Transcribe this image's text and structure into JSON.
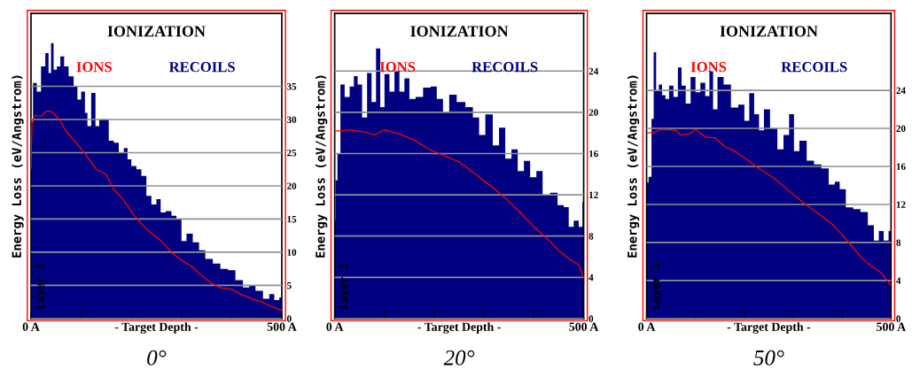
{
  "chart_data": [
    {
      "type": "area",
      "title": "IONIZATION",
      "xlabel": "- Target Depth -",
      "ylabel": "Energy Loss (eV/Angstrom)",
      "annotations": [
        "Layer 1",
        "0°"
      ],
      "xlim": [
        0,
        500
      ],
      "xticks": [
        {
          "value": 0,
          "label": "0 A"
        },
        {
          "value": 100,
          "label": null
        },
        {
          "value": 200,
          "label": null
        },
        {
          "value": 300,
          "label": null
        },
        {
          "value": 400,
          "label": null
        },
        {
          "value": 500,
          "label": "500 A"
        }
      ],
      "ylim": [
        0,
        46
      ],
      "yticks": [
        0,
        5,
        10,
        15,
        20,
        25,
        30,
        35
      ],
      "grid": "y",
      "series": [
        {
          "name": "RECOILS",
          "color": "#000080",
          "x": [
            0,
            8,
            15,
            25,
            32,
            38,
            42,
            48,
            55,
            62,
            70,
            80,
            90,
            95,
            105,
            110,
            115,
            125,
            132,
            140,
            150,
            160,
            170,
            180,
            190,
            195,
            205,
            215,
            225,
            235,
            245,
            255,
            262,
            275,
            285,
            295,
            305,
            315,
            330,
            340,
            355,
            370,
            385,
            400,
            415,
            430,
            440,
            455,
            470,
            480,
            490,
            500
          ],
          "values": [
            29.6,
            35.5,
            34.2,
            38,
            40,
            37,
            41.5,
            37.5,
            38,
            39.5,
            38,
            36.5,
            35,
            33,
            34.2,
            31,
            29,
            34,
            29,
            30,
            30,
            26.8,
            26.5,
            25,
            25.7,
            24,
            23,
            22.5,
            21.5,
            18.5,
            17.2,
            18,
            16,
            16.2,
            15.5,
            15,
            11.7,
            12.8,
            11.5,
            10.3,
            9,
            8.3,
            7.5,
            7.3,
            5.8,
            4.7,
            5,
            4.2,
            3,
            3.7,
            2.8,
            3.2
          ]
        },
        {
          "name": "IONS",
          "type": "line",
          "color": "#ff0000",
          "x": [
            0,
            2,
            8,
            20,
            30,
            40,
            55,
            70,
            90,
            110,
            130,
            150,
            165,
            185,
            205,
            230,
            255,
            280,
            300,
            320,
            340,
            360,
            380,
            400,
            420,
            440,
            460,
            480,
            500
          ],
          "values": [
            22.6,
            29.8,
            30.6,
            30.5,
            31.2,
            31.2,
            30.2,
            28.2,
            26.5,
            24.6,
            22.5,
            21.7,
            19.5,
            17.8,
            15.6,
            13.5,
            12,
            10,
            8.8,
            7.9,
            6.5,
            5.3,
            4.6,
            4.4,
            3.6,
            3.0,
            2.5,
            1.8,
            1.2
          ]
        }
      ]
    },
    {
      "type": "area",
      "title": "IONIZATION",
      "xlabel": "- Target Depth -",
      "ylabel": "Energy Loss (eV/Angstrom)",
      "annotations": [
        "Layer 1",
        "20°"
      ],
      "xlim": [
        0,
        500
      ],
      "xticks": [
        {
          "value": 0,
          "label": "0 A"
        },
        {
          "value": 100,
          "label": null
        },
        {
          "value": 200,
          "label": null
        },
        {
          "value": 300,
          "label": null
        },
        {
          "value": 400,
          "label": null
        },
        {
          "value": 500,
          "label": "500 A"
        }
      ],
      "ylim": [
        0,
        29.6
      ],
      "yticks": [
        0,
        4,
        8,
        12,
        16,
        20,
        24
      ],
      "grid": "y",
      "series": [
        {
          "name": "RECOILS",
          "color": "#000080",
          "x": [
            0,
            3,
            8,
            15,
            25,
            35,
            42,
            50,
            60,
            70,
            78,
            88,
            95,
            105,
            115,
            125,
            135,
            145,
            155,
            170,
            185,
            200,
            210,
            225,
            235,
            255,
            270,
            285,
            295,
            310,
            325,
            335,
            350,
            360,
            375,
            385,
            400,
            410,
            425,
            440,
            455,
            465,
            475,
            485,
            495,
            500
          ],
          "values": [
            9.5,
            13.4,
            16,
            22.7,
            21.5,
            22.5,
            23.5,
            22.7,
            19.5,
            23.8,
            21,
            26.2,
            20.5,
            23.7,
            22,
            24,
            22,
            23.3,
            21.3,
            21.5,
            22.4,
            22.5,
            21.3,
            20,
            21.7,
            21,
            20.5,
            19.5,
            17.8,
            19.8,
            16.8,
            18.5,
            15.5,
            16.4,
            14.3,
            15.3,
            13.7,
            14.3,
            12,
            12.2,
            11,
            10.8,
            8.9,
            9.5,
            8.9,
            11.3
          ]
        },
        {
          "name": "IONS",
          "type": "line",
          "color": "#ff0000",
          "x": [
            0,
            15,
            30,
            60,
            80,
            100,
            130,
            160,
            190,
            220,
            250,
            280,
            310,
            340,
            370,
            400,
            430,
            450,
            470,
            490,
            500
          ],
          "values": [
            18.2,
            18.2,
            18.3,
            18.1,
            17.8,
            18.3,
            17.9,
            17.3,
            16.4,
            15.8,
            15.2,
            14.1,
            13,
            11.8,
            10.4,
            8.9,
            7.6,
            6.6,
            5.8,
            5.2,
            3.9
          ]
        }
      ]
    },
    {
      "type": "area",
      "title": "IONIZATION",
      "xlabel": "- Target Depth -",
      "ylabel": "Energy Loss (eV/Angstrom)",
      "annotations": [
        "Layer 1",
        "50°"
      ],
      "xlim": [
        0,
        500
      ],
      "xticks": [
        {
          "value": 0,
          "label": "0 A"
        },
        {
          "value": 100,
          "label": null
        },
        {
          "value": 200,
          "label": null
        },
        {
          "value": 300,
          "label": null
        },
        {
          "value": 400,
          "label": null
        },
        {
          "value": 500,
          "label": "500 A"
        }
      ],
      "ylim": [
        0,
        32.1
      ],
      "yticks": [
        0,
        4,
        8,
        12,
        16,
        20,
        24
      ],
      "grid": "y",
      "series": [
        {
          "name": "RECOILS",
          "color": "#000080",
          "x": [
            0,
            8,
            12,
            17,
            22,
            28,
            35,
            42,
            50,
            60,
            68,
            75,
            85,
            95,
            105,
            115,
            125,
            132,
            140,
            150,
            165,
            180,
            195,
            205,
            215,
            225,
            235,
            245,
            260,
            275,
            285,
            298,
            305,
            320,
            335,
            350,
            365,
            380,
            390,
            400,
            415,
            430,
            445,
            460,
            470,
            480,
            490,
            500
          ],
          "values": [
            14.3,
            14.9,
            21,
            28,
            24,
            24.6,
            23.5,
            23.1,
            24.5,
            23.3,
            26.4,
            24.5,
            22.6,
            25.4,
            23.8,
            24.8,
            23.4,
            26,
            22,
            25.4,
            24.6,
            22.2,
            22.5,
            20.8,
            23.7,
            21.5,
            19.8,
            22,
            20,
            17.8,
            19.3,
            21.5,
            17.6,
            18.7,
            16.6,
            16.2,
            15.8,
            14.1,
            14.4,
            13.6,
            11.7,
            11.5,
            11.2,
            9.8,
            8.2,
            9.2,
            8.2,
            9.2
          ]
        },
        {
          "name": "IONS",
          "type": "line",
          "color": "#ff0000",
          "x": [
            0,
            15,
            30,
            60,
            70,
            90,
            100,
            120,
            140,
            160,
            180,
            200,
            230,
            260,
            290,
            320,
            350,
            380,
            400,
            420,
            440,
            460,
            480,
            500
          ],
          "values": [
            19.5,
            19.6,
            19.9,
            19.8,
            19.3,
            19.5,
            19.9,
            19.1,
            19,
            18.1,
            17.6,
            16.9,
            15.8,
            14.8,
            13.5,
            12.2,
            11.1,
            9.9,
            8.8,
            7.6,
            6.4,
            5.5,
            4.8,
            3.5
          ]
        }
      ]
    }
  ]
}
